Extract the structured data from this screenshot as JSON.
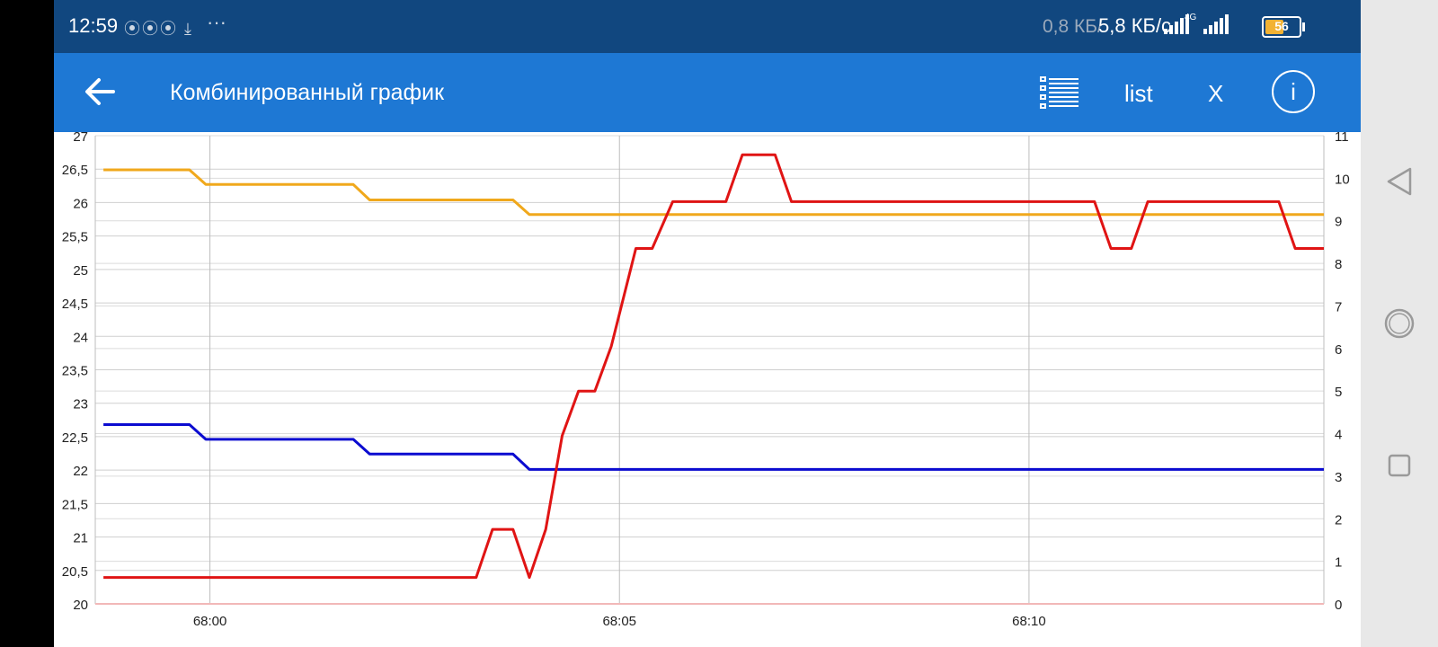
{
  "status_bar": {
    "time": "12:59",
    "notif_icons": "⦿⦿⦿ ⤓",
    "more": "···",
    "speed_a": "0,8 КБ/",
    "speed_b": "5,8 КБ/с",
    "network": "4G",
    "battery_level": "56",
    "battery_fraction": 0.56,
    "icons": [
      "hotspot-icon",
      "hotspot-icon",
      "hotspot-icon",
      "download-icon",
      "signal-icon",
      "signal-icon",
      "battery-icon"
    ]
  },
  "toolbar": {
    "back_icon": "arrow-left-icon",
    "title": "Комбинированный график",
    "list_icon": "list-icon",
    "list_label": "list",
    "close_label": "X",
    "info_label": "i"
  },
  "nav": {
    "buttons": [
      "back-triangle-icon",
      "home-circle-icon",
      "recents-square-icon"
    ]
  },
  "chart_data": {
    "type": "line",
    "x_ticks": [
      "68:00",
      "68:05",
      "68:10"
    ],
    "x_tick_minutes": [
      0,
      5,
      10
    ],
    "xlim": [
      -1.4,
      13.6
    ],
    "left_axis": {
      "ylim": [
        20,
        27
      ],
      "ticks": [
        "20",
        "20,5",
        "21",
        "21,5",
        "22",
        "22,5",
        "23",
        "23,5",
        "24",
        "24,5",
        "25",
        "25,5",
        "26",
        "26,5",
        "27"
      ]
    },
    "right_axis": {
      "ylim": [
        0,
        11
      ],
      "ticks": [
        "0",
        "1",
        "2",
        "3",
        "4",
        "5",
        "6",
        "7",
        "8",
        "9",
        "10",
        "11"
      ]
    },
    "grid": true,
    "series": [
      {
        "color": "#f0a81c",
        "axis": "left",
        "points": [
          [
            -1.3,
            26.49
          ],
          [
            -0.25,
            26.49
          ],
          [
            -0.05,
            26.27
          ],
          [
            1.75,
            26.27
          ],
          [
            1.95,
            26.04
          ],
          [
            3.7,
            26.04
          ],
          [
            3.9,
            25.82
          ],
          [
            13.6,
            25.82
          ]
        ]
      },
      {
        "color": "#0b0bd0",
        "axis": "left",
        "points": [
          [
            -1.3,
            22.68
          ],
          [
            -0.25,
            22.68
          ],
          [
            -0.05,
            22.46
          ],
          [
            1.75,
            22.46
          ],
          [
            1.95,
            22.24
          ],
          [
            3.7,
            22.24
          ],
          [
            3.9,
            22.01
          ],
          [
            13.6,
            22.01
          ]
        ]
      },
      {
        "color": "#e01414",
        "axis": "right",
        "points": [
          [
            -1.3,
            0.62
          ],
          [
            3.25,
            0.62
          ],
          [
            3.45,
            1.75
          ],
          [
            3.7,
            1.75
          ],
          [
            3.9,
            0.62
          ],
          [
            4.1,
            1.75
          ],
          [
            4.3,
            3.95
          ],
          [
            4.5,
            5.0
          ],
          [
            4.7,
            5.0
          ],
          [
            4.9,
            6.05
          ],
          [
            5.2,
            8.35
          ],
          [
            5.4,
            8.35
          ],
          [
            5.65,
            9.45
          ],
          [
            6.3,
            9.45
          ],
          [
            6.5,
            10.55
          ],
          [
            6.9,
            10.55
          ],
          [
            7.1,
            9.45
          ],
          [
            10.8,
            9.45
          ],
          [
            11.0,
            8.35
          ],
          [
            11.25,
            8.35
          ],
          [
            11.45,
            9.45
          ],
          [
            13.05,
            9.45
          ],
          [
            13.25,
            8.35
          ],
          [
            13.6,
            8.35
          ]
        ]
      }
    ]
  }
}
